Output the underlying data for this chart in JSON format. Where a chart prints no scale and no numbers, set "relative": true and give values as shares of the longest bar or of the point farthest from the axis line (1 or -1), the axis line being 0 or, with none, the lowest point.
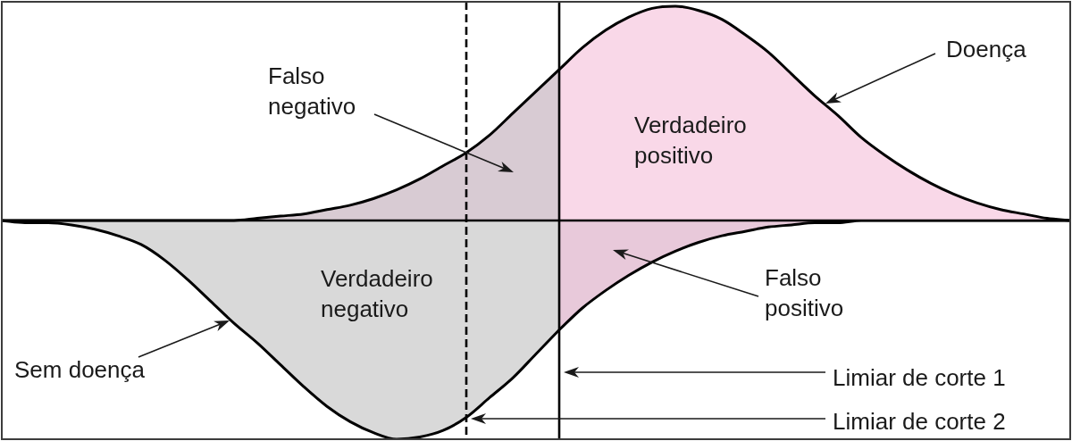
{
  "chart_data": {
    "type": "area",
    "relative": true,
    "marker": "none",
    "categories": [
      null,
      null,
      null,
      null,
      null,
      null,
      null,
      null,
      null,
      null,
      null,
      null,
      null,
      null,
      null,
      null,
      null,
      null,
      null,
      null,
      null,
      null,
      null,
      null,
      null,
      null,
      null,
      null,
      null,
      null,
      null,
      null,
      null,
      null,
      null,
      null,
      null,
      null,
      null,
      null,
      null,
      null,
      null,
      null,
      null,
      null,
      null
    ],
    "series": [
      {
        "color": "#d8cbd3",
        "values": [
          0,
          0,
          0,
          0,
          0,
          0,
          0,
          0,
          0,
          0,
          0,
          0.01,
          0.02,
          0.03,
          0.05,
          0.07,
          0.1,
          0.14,
          0.19,
          0.25,
          0.31,
          0.39,
          0.49,
          0.59,
          0.69,
          null,
          null,
          null,
          null,
          null,
          null,
          null,
          null,
          null,
          null,
          null,
          null,
          null,
          null,
          null,
          null,
          null,
          null,
          null,
          null,
          null,
          null
        ]
      },
      {
        "color": "#f9d8e8",
        "values": [
          null,
          null,
          null,
          null,
          null,
          null,
          null,
          null,
          null,
          null,
          null,
          null,
          null,
          null,
          null,
          null,
          null,
          null,
          null,
          null,
          null,
          null,
          null,
          null,
          0.69,
          0.79,
          0.87,
          0.93,
          0.97,
          0.98,
          0.96,
          0.92,
          0.85,
          0.77,
          0.67,
          0.57,
          0.48,
          0.38,
          0.3,
          0.23,
          0.17,
          0.12,
          0.08,
          0.05,
          0.03,
          0.01,
          0
        ]
      },
      {
        "color": "#d9d9d9",
        "values": [
          0,
          -0.01,
          -0.01,
          -0.02,
          -0.04,
          -0.07,
          -0.11,
          -0.18,
          -0.27,
          -0.37,
          -0.47,
          -0.56,
          -0.66,
          -0.76,
          -0.85,
          -0.92,
          -0.97,
          -1,
          -0.99,
          -0.96,
          -0.9,
          -0.81,
          -0.72,
          -0.61,
          -0.5,
          null,
          null,
          null,
          null,
          null,
          null,
          null,
          null,
          null,
          null,
          null,
          null,
          null,
          null,
          null,
          null,
          null,
          null,
          null,
          null,
          null,
          null
        ]
      },
      {
        "color": "#e8c9da",
        "values": [
          null,
          null,
          null,
          null,
          null,
          null,
          null,
          null,
          null,
          null,
          null,
          null,
          null,
          null,
          null,
          null,
          null,
          null,
          null,
          null,
          null,
          null,
          null,
          null,
          -0.5,
          -0.4,
          -0.32,
          -0.25,
          -0.19,
          -0.14,
          -0.1,
          -0.07,
          -0.05,
          -0.03,
          -0.02,
          -0.01,
          -0.01,
          0,
          0,
          0,
          0,
          0,
          0,
          0,
          0,
          0,
          0
        ]
      }
    ],
    "annotations": [
      "Falso negativo",
      "Doença",
      "Verdadeiro positivo",
      "Verdadeiro negativo",
      "Falso positivo",
      "Sem doença",
      "Limiar de corte 1",
      "Limiar de corte 2"
    ]
  }
}
